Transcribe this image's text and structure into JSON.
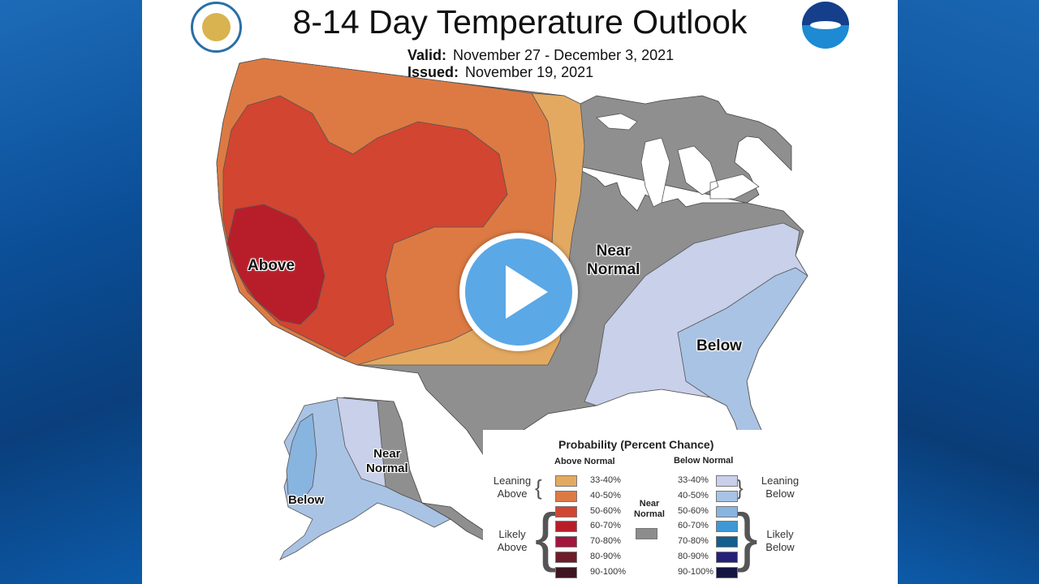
{
  "title": "8-14 Day Temperature Outlook",
  "valid": {
    "label": "Valid:",
    "value": "November 27 - December 3, 2021"
  },
  "issued": {
    "label": "Issued:",
    "value": "November 19, 2021"
  },
  "logos": {
    "left": "commerce-seal-icon",
    "right": "noaa-logo-icon"
  },
  "regions": {
    "above": "Above",
    "near_normal_conus": [
      "Near",
      "Normal"
    ],
    "below_conus": "Below",
    "near_normal_alaska": [
      "Near",
      "Normal"
    ],
    "below_alaska": "Below"
  },
  "legend": {
    "title": "Probability (Percent Chance)",
    "above_header": "Above Normal",
    "below_header": "Below Normal",
    "near_label": [
      "Near",
      "Normal"
    ],
    "leaning_above": [
      "Leaning",
      "Above"
    ],
    "likely_above": [
      "Likely",
      "Above"
    ],
    "leaning_below": [
      "Leaning",
      "Below"
    ],
    "likely_below": [
      "Likely",
      "Below"
    ],
    "above_bins": [
      {
        "range": "33-40%",
        "color": "#e3a961"
      },
      {
        "range": "40-50%",
        "color": "#dd7a43"
      },
      {
        "range": "50-60%",
        "color": "#d24530"
      },
      {
        "range": "60-70%",
        "color": "#b81e2a"
      },
      {
        "range": "70-80%",
        "color": "#a3153e"
      },
      {
        "range": "80-90%",
        "color": "#6e1c2a"
      },
      {
        "range": "90-100%",
        "color": "#3e1520"
      }
    ],
    "below_bins": [
      {
        "range": "33-40%",
        "color": "#c8d0ea"
      },
      {
        "range": "40-50%",
        "color": "#a9c3e4"
      },
      {
        "range": "50-60%",
        "color": "#88b4e0"
      },
      {
        "range": "60-70%",
        "color": "#3f98d4"
      },
      {
        "range": "70-80%",
        "color": "#135d8f"
      },
      {
        "range": "80-90%",
        "color": "#27207a"
      },
      {
        "range": "90-100%",
        "color": "#151544"
      }
    ],
    "near_color": "#8c8c8c"
  },
  "play_button": "play-icon"
}
